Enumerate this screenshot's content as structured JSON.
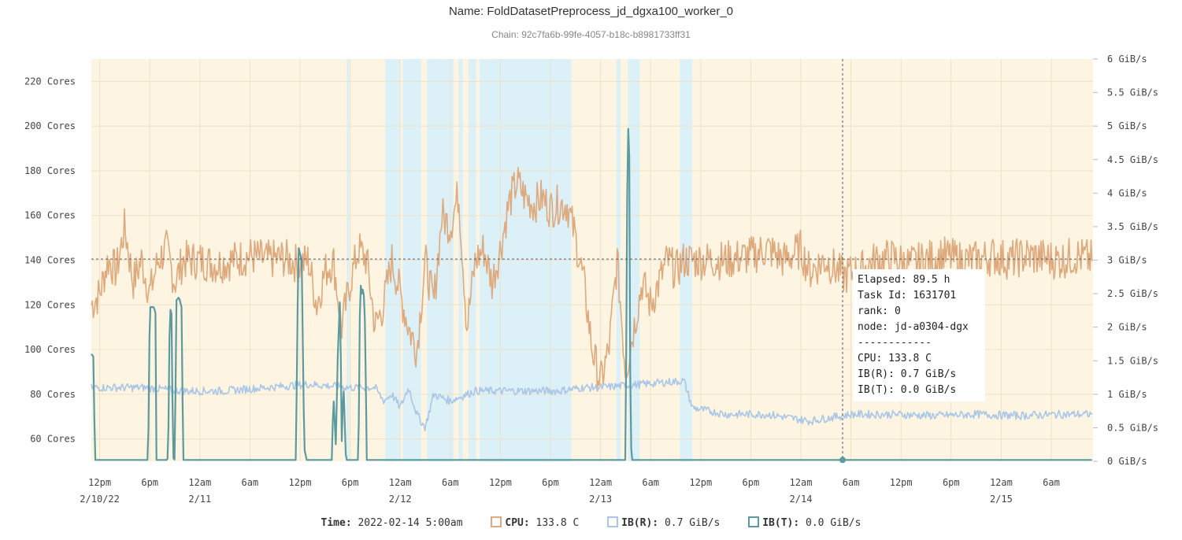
{
  "title": "Name: FoldDatasetPreprocess_jd_dgxa100_worker_0",
  "subtitle": "Chain: 92c7fa6b-99fe-4057-b18c-b8981733ff31",
  "colors": {
    "cpu": "#dea97c",
    "ib_r": "#a9c6e6",
    "ib_t": "#5b9aa0",
    "bg_band": "#fdf5e2",
    "blue_band": "#dcf0f8",
    "grid": "#ede2c8"
  },
  "tooltip": {
    "lines": [
      "Elapsed: 89.5 h",
      "Task Id: 1631701",
      "rank: 0",
      "node: jd-a0304-dgx",
      "------------",
      "CPU: 133.8 C",
      "IB(R): 0.7 GiB/s",
      "IB(T): 0.0 GiB/s"
    ]
  },
  "legend": {
    "time_label": "Time:",
    "time_value": "2022-02-14 5:00am",
    "cpu_label": "CPU:",
    "cpu_value": "133.8 C",
    "ibr_label": "IB(R):",
    "ibr_value": "0.7 GiB/s",
    "ibt_label": "IB(T):",
    "ibt_value": "0.0 GiB/s"
  },
  "chart_data": {
    "type": "line",
    "x_unit": "hours elapsed",
    "x_range": [
      -1,
      119
    ],
    "y_left": {
      "range": [
        50,
        230
      ],
      "ticks": [
        60,
        80,
        100,
        120,
        140,
        160,
        180,
        200,
        220
      ],
      "tick_labels": [
        "60 Cores",
        "80 Cores",
        "100 Cores",
        "120 Cores",
        "140 Cores",
        "160 Cores",
        "180 Cores",
        "200 Cores",
        "220 Cores"
      ]
    },
    "y_right": {
      "range": [
        0,
        6
      ],
      "ticks": [
        0,
        0.5,
        1,
        1.5,
        2,
        2.5,
        3,
        3.5,
        4,
        4.5,
        5,
        5.5,
        6
      ],
      "tick_labels": [
        "0 GiB/s",
        "0.5 GiB/s",
        "1 GiB/s",
        "1.5 GiB/s",
        "2 GiB/s",
        "2.5 GiB/s",
        "3 GiB/s",
        "3.5 GiB/s",
        "4 GiB/s",
        "4.5 GiB/s",
        "5 GiB/s",
        "5.5 GiB/s",
        "6 GiB/s"
      ]
    },
    "x_ticks": [
      {
        "h": 0,
        "label": "12pm",
        "date": "2/10/22"
      },
      {
        "h": 6,
        "label": "6pm",
        "date": ""
      },
      {
        "h": 12,
        "label": "12am",
        "date": "2/11"
      },
      {
        "h": 18,
        "label": "6am",
        "date": ""
      },
      {
        "h": 24,
        "label": "12pm",
        "date": ""
      },
      {
        "h": 30,
        "label": "6pm",
        "date": ""
      },
      {
        "h": 36,
        "label": "12am",
        "date": "2/12"
      },
      {
        "h": 42,
        "label": "6am",
        "date": ""
      },
      {
        "h": 48,
        "label": "12pm",
        "date": ""
      },
      {
        "h": 54,
        "label": "6pm",
        "date": ""
      },
      {
        "h": 60,
        "label": "12am",
        "date": "2/13"
      },
      {
        "h": 66,
        "label": "6am",
        "date": ""
      },
      {
        "h": 72,
        "label": "12pm",
        "date": ""
      },
      {
        "h": 78,
        "label": "6pm",
        "date": ""
      },
      {
        "h": 84,
        "label": "12am",
        "date": "2/14"
      },
      {
        "h": 90,
        "label": "6am",
        "date": ""
      },
      {
        "h": 96,
        "label": "12pm",
        "date": ""
      },
      {
        "h": 102,
        "label": "6pm",
        "date": ""
      },
      {
        "h": 108,
        "label": "12am",
        "date": "2/15"
      },
      {
        "h": 114,
        "label": "6am",
        "date": ""
      }
    ],
    "crosshair": {
      "h": 89,
      "cpu": 140.5
    },
    "blue_bands": [
      [
        29.6,
        29.9
      ],
      [
        34.2,
        36.0
      ],
      [
        36.3,
        38.5
      ],
      [
        39.2,
        42.4
      ],
      [
        43.0,
        43.5
      ],
      [
        44.2,
        45.1
      ],
      [
        45.5,
        56.5
      ],
      [
        61.9,
        62.4
      ],
      [
        63.3,
        64.7
      ],
      [
        69.5,
        71.0
      ]
    ],
    "series": [
      {
        "name": "CPU",
        "axis": "left",
        "unit": "Cores",
        "keyframes": [
          [
            -1,
            120
          ],
          [
            0,
            125
          ],
          [
            1,
            140
          ],
          [
            2,
            135
          ],
          [
            3,
            155
          ],
          [
            4,
            130
          ],
          [
            5,
            140
          ],
          [
            6,
            125
          ],
          [
            7,
            140
          ],
          [
            8,
            145
          ],
          [
            9,
            130
          ],
          [
            10,
            140
          ],
          [
            12,
            140
          ],
          [
            14,
            138
          ],
          [
            16,
            140
          ],
          [
            18,
            142
          ],
          [
            20,
            140
          ],
          [
            22,
            141
          ],
          [
            24,
            138
          ],
          [
            25,
            140
          ],
          [
            26,
            120
          ],
          [
            27,
            135
          ],
          [
            28,
            140
          ],
          [
            29,
            110
          ],
          [
            30,
            130
          ],
          [
            31,
            145
          ],
          [
            32,
            140
          ],
          [
            33,
            110
          ],
          [
            34,
            120
          ],
          [
            35,
            140
          ],
          [
            36,
            125
          ],
          [
            37,
            110
          ],
          [
            38,
            100
          ],
          [
            39,
            140
          ],
          [
            40,
            120
          ],
          [
            41,
            160
          ],
          [
            42,
            155
          ],
          [
            43,
            170
          ],
          [
            44,
            110
          ],
          [
            45,
            140
          ],
          [
            46,
            145
          ],
          [
            47,
            130
          ],
          [
            48,
            145
          ],
          [
            49,
            165
          ],
          [
            50,
            175
          ],
          [
            51,
            168
          ],
          [
            52,
            165
          ],
          [
            53,
            168
          ],
          [
            54,
            163
          ],
          [
            55,
            165
          ],
          [
            56,
            165
          ],
          [
            57,
            150
          ],
          [
            58,
            130
          ],
          [
            59,
            100
          ],
          [
            60,
            85
          ],
          [
            61,
            100
          ],
          [
            62,
            140
          ],
          [
            63,
            90
          ],
          [
            64,
            110
          ],
          [
            65,
            130
          ],
          [
            66,
            120
          ],
          [
            67,
            130
          ],
          [
            68,
            140
          ],
          [
            69,
            135
          ],
          [
            70,
            140
          ],
          [
            72,
            140
          ],
          [
            75,
            140
          ],
          [
            78,
            142
          ],
          [
            80,
            145
          ],
          [
            82,
            140
          ],
          [
            84,
            145
          ],
          [
            85,
            135
          ],
          [
            87,
            140
          ],
          [
            89,
            133
          ],
          [
            91,
            135
          ],
          [
            93,
            140
          ],
          [
            95,
            141
          ],
          [
            97,
            138
          ],
          [
            99,
            140
          ],
          [
            101,
            142
          ],
          [
            103,
            140
          ],
          [
            105,
            140
          ],
          [
            107,
            142
          ],
          [
            109,
            140
          ],
          [
            111,
            142
          ],
          [
            113,
            141
          ],
          [
            115,
            140
          ],
          [
            117,
            142
          ],
          [
            119,
            140
          ]
        ],
        "amplitude": 9
      },
      {
        "name": "IB(R)",
        "axis": "right",
        "unit": "GiB/s",
        "keyframes": [
          [
            -1,
            1.1
          ],
          [
            5,
            1.1
          ],
          [
            10,
            1.05
          ],
          [
            15,
            1.05
          ],
          [
            20,
            1.1
          ],
          [
            25,
            1.15
          ],
          [
            30,
            1.1
          ],
          [
            33,
            1.1
          ],
          [
            34,
            0.9
          ],
          [
            35,
            1.0
          ],
          [
            36,
            0.8
          ],
          [
            37,
            1.1
          ],
          [
            38,
            0.7
          ],
          [
            39,
            0.5
          ],
          [
            40,
            1.0
          ],
          [
            42,
            0.9
          ],
          [
            45,
            1.05
          ],
          [
            50,
            1.05
          ],
          [
            55,
            1.05
          ],
          [
            58,
            1.1
          ],
          [
            60,
            1.1
          ],
          [
            65,
            1.15
          ],
          [
            70,
            1.2
          ],
          [
            71,
            0.8
          ],
          [
            75,
            0.7
          ],
          [
            80,
            0.7
          ],
          [
            85,
            0.6
          ],
          [
            90,
            0.7
          ],
          [
            95,
            0.7
          ],
          [
            100,
            0.68
          ],
          [
            105,
            0.7
          ],
          [
            110,
            0.68
          ],
          [
            115,
            0.7
          ],
          [
            119,
            0.7
          ]
        ],
        "amplitude": 0.06
      },
      {
        "name": "IB(T)",
        "axis": "right",
        "unit": "GiB/s",
        "keyframes": [
          [
            -1,
            1.6
          ],
          [
            -0.7,
            1.55
          ],
          [
            -0.6,
            0.02
          ],
          [
            5.8,
            0.02
          ],
          [
            6.0,
            2.3
          ],
          [
            6.5,
            2.3
          ],
          [
            6.7,
            2.2
          ],
          [
            6.8,
            0.02
          ],
          [
            8.0,
            0.02
          ],
          [
            8.2,
            0.05
          ],
          [
            8.4,
            2.3
          ],
          [
            8.6,
            2.2
          ],
          [
            8.8,
            0.05
          ],
          [
            9.0,
            0.02
          ],
          [
            9.2,
            2.4
          ],
          [
            9.5,
            2.45
          ],
          [
            9.8,
            2.3
          ],
          [
            10.0,
            0.02
          ],
          [
            23.5,
            0.02
          ],
          [
            23.8,
            3.2
          ],
          [
            24.2,
            3.0
          ],
          [
            24.5,
            0.2
          ],
          [
            24.8,
            0.02
          ],
          [
            27.8,
            0.02
          ],
          [
            28.0,
            1.0
          ],
          [
            28.3,
            0.2
          ],
          [
            28.5,
            1.5
          ],
          [
            28.8,
            2.5
          ],
          [
            29.0,
            0.3
          ],
          [
            29.2,
            1.2
          ],
          [
            29.5,
            0.02
          ],
          [
            31.0,
            0.02
          ],
          [
            31.2,
            2.7
          ],
          [
            31.4,
            2.5
          ],
          [
            31.6,
            2.6
          ],
          [
            31.8,
            2.0
          ],
          [
            32.0,
            0.02
          ],
          [
            63.0,
            0.02
          ],
          [
            63.2,
            4.0
          ],
          [
            63.4,
            5.6
          ],
          [
            63.6,
            0.3
          ],
          [
            63.8,
            0.02
          ],
          [
            119,
            0.02
          ]
        ],
        "amplitude": 0
      }
    ]
  }
}
